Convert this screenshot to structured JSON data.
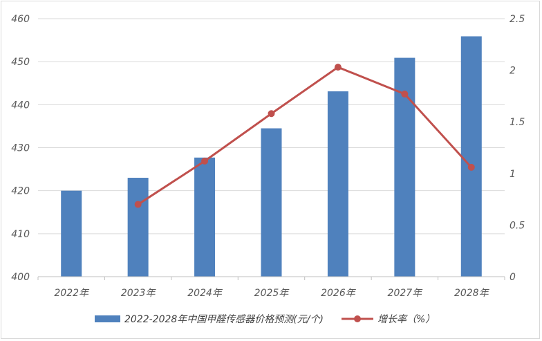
{
  "chart_data": {
    "type": "bar",
    "categories": [
      "2022年",
      "2023年",
      "2024年",
      "2025年",
      "2026年",
      "2027年",
      "2028年"
    ],
    "series": [
      {
        "name": "2022-2028年中国甲醛传感器价格预测(元/个)",
        "kind": "bar",
        "axis": "left",
        "color": "#4f81bd",
        "values": [
          420,
          423,
          427.7,
          434.5,
          443.1,
          450.9,
          455.9
        ]
      },
      {
        "name": "增长率（%）",
        "kind": "line",
        "axis": "right",
        "color": "#c0504d",
        "values": [
          null,
          0.7,
          1.12,
          1.58,
          2.03,
          1.77,
          1.06
        ]
      }
    ],
    "ylim_left": [
      400,
      460
    ],
    "yticks_left": [
      "400",
      "410",
      "420",
      "430",
      "440",
      "450",
      "460"
    ],
    "ylim_right": [
      0,
      2.5
    ],
    "yticks_right": [
      "0",
      "0.5",
      "1",
      "1.5",
      "2",
      "2.5"
    ],
    "grid": "horizontal",
    "legend": "bottom"
  }
}
